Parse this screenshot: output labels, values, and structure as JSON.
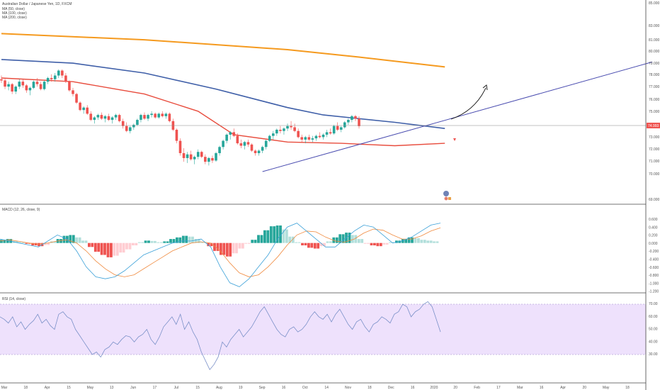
{
  "symbol_line": "Australian Dollar / Japanese Yen, 1D, FXCM",
  "ma_labels": [
    "MA (50, close)",
    "MA (100, close)",
    "MA (200, close)"
  ],
  "macd_label": "MACD (12, 26, close, 9)",
  "rsi_label": "RSI (14, close)",
  "colors": {
    "up": "#26a69a",
    "down": "#ef5350",
    "ma50": "#e84c3d",
    "ma100": "#3f5fa8",
    "ma200": "#f59a1f",
    "trend": "#4a4db0",
    "rsi_band": "#ead9fb",
    "rsi": "#7a90c8"
  },
  "price_axis": [
    "85.000",
    "83.000",
    "81.000",
    "80.000",
    "79.000",
    "78.000",
    "77.000",
    "76.000",
    "75.000",
    "74.000",
    "73.000",
    "72.000",
    "71.000",
    "70.000",
    "69.000"
  ],
  "current_price": "74.993",
  "macd_axis": [
    "0.600",
    "0.400",
    "0.200",
    "0.000",
    "-0.200",
    "-0.400",
    "-0.600",
    "-0.800",
    "-1.000",
    "-1.200"
  ],
  "rsi_axis": [
    "70.00",
    "60.00",
    "50.00",
    "40.00",
    "30.00"
  ],
  "time_axis": [
    "Mar",
    "18",
    "Apr",
    "15",
    "May",
    "13",
    "Jun",
    "17",
    "Jul",
    "15",
    "Aug",
    "19",
    "Sep",
    "16",
    "Oct",
    "14",
    "Nov",
    "18",
    "Dec",
    "16",
    "2020",
    "20",
    "Feb",
    "17",
    "Mar",
    "16",
    "Apr",
    "20",
    "May",
    "18"
  ],
  "chart_data": {
    "type": "candlestick",
    "price_range": [
      69,
      85
    ],
    "macd_range": [
      -1.2,
      0.7
    ],
    "rsi_range": [
      20,
      80
    ],
    "rsi_levels": [
      70,
      30
    ],
    "grid": false,
    "candles": [
      [
        78.8,
        79.1,
        78.5,
        78.7
      ],
      [
        78.7,
        78.9,
        78.0,
        78.2
      ],
      [
        78.2,
        78.6,
        77.9,
        78.4
      ],
      [
        78.4,
        78.5,
        77.6,
        77.8
      ],
      [
        77.8,
        78.3,
        77.6,
        78.2
      ],
      [
        78.2,
        78.8,
        78.0,
        78.6
      ],
      [
        78.6,
        78.8,
        78.1,
        78.3
      ],
      [
        78.3,
        78.4,
        77.7,
        77.9
      ],
      [
        77.9,
        78.2,
        77.5,
        78.1
      ],
      [
        78.1,
        78.7,
        78.0,
        78.6
      ],
      [
        78.6,
        78.9,
        78.2,
        78.4
      ],
      [
        78.4,
        78.6,
        77.9,
        78.0
      ],
      [
        78.0,
        78.7,
        77.9,
        78.6
      ],
      [
        78.6,
        79.0,
        78.4,
        78.9
      ],
      [
        78.9,
        79.2,
        78.6,
        78.8
      ],
      [
        78.8,
        79.3,
        78.6,
        79.1
      ],
      [
        79.1,
        79.6,
        78.9,
        79.5
      ],
      [
        79.5,
        79.6,
        78.9,
        79.1
      ],
      [
        79.1,
        79.3,
        78.5,
        78.6
      ],
      [
        78.6,
        78.7,
        77.8,
        77.9
      ],
      [
        77.9,
        78.1,
        77.4,
        77.6
      ],
      [
        77.6,
        77.7,
        76.8,
        76.9
      ],
      [
        76.9,
        77.0,
        76.2,
        76.3
      ],
      [
        76.3,
        76.6,
        76.0,
        76.5
      ],
      [
        76.5,
        76.7,
        75.9,
        76.0
      ],
      [
        76.0,
        76.2,
        75.4,
        75.5
      ],
      [
        75.5,
        75.8,
        75.2,
        75.7
      ],
      [
        75.7,
        76.0,
        75.5,
        75.9
      ],
      [
        75.9,
        76.1,
        75.5,
        75.6
      ],
      [
        75.6,
        75.9,
        75.3,
        75.8
      ],
      [
        75.8,
        76.0,
        75.4,
        75.5
      ],
      [
        75.5,
        75.8,
        75.2,
        75.7
      ],
      [
        75.7,
        76.0,
        75.5,
        75.9
      ],
      [
        75.9,
        76.0,
        75.3,
        75.4
      ],
      [
        75.4,
        75.6,
        74.8,
        75.0
      ],
      [
        75.0,
        75.3,
        74.5,
        74.6
      ],
      [
        74.6,
        75.0,
        74.4,
        74.9
      ],
      [
        74.9,
        75.2,
        74.7,
        75.1
      ],
      [
        75.1,
        75.6,
        75.0,
        75.5
      ],
      [
        75.5,
        76.0,
        75.3,
        75.9
      ],
      [
        75.9,
        76.1,
        75.5,
        75.6
      ],
      [
        75.6,
        76.0,
        75.4,
        75.9
      ],
      [
        75.9,
        76.2,
        75.7,
        76.0
      ],
      [
        76.0,
        76.1,
        75.6,
        75.7
      ],
      [
        75.7,
        76.1,
        75.6,
        76.0
      ],
      [
        76.0,
        76.2,
        75.7,
        75.8
      ],
      [
        75.8,
        76.1,
        75.6,
        76.0
      ],
      [
        76.0,
        76.1,
        75.3,
        75.4
      ],
      [
        75.4,
        75.6,
        74.6,
        74.7
      ],
      [
        74.7,
        74.8,
        73.6,
        73.8
      ],
      [
        73.8,
        74.0,
        72.6,
        72.8
      ],
      [
        72.8,
        73.2,
        72.1,
        72.4
      ],
      [
        72.4,
        72.9,
        72.0,
        72.7
      ],
      [
        72.7,
        73.0,
        72.2,
        72.3
      ],
      [
        72.3,
        72.6,
        71.9,
        72.5
      ],
      [
        72.5,
        73.1,
        72.3,
        72.9
      ],
      [
        72.9,
        73.0,
        72.4,
        72.5
      ],
      [
        72.5,
        72.7,
        71.9,
        72.1
      ],
      [
        72.1,
        72.5,
        71.8,
        72.4
      ],
      [
        72.4,
        72.6,
        72.0,
        72.2
      ],
      [
        72.2,
        72.9,
        72.1,
        72.8
      ],
      [
        72.8,
        73.4,
        72.6,
        73.3
      ],
      [
        73.3,
        73.9,
        73.1,
        73.8
      ],
      [
        73.8,
        74.4,
        73.6,
        74.3
      ],
      [
        74.3,
        74.6,
        73.9,
        74.5
      ],
      [
        74.5,
        74.8,
        74.1,
        74.2
      ],
      [
        74.2,
        74.4,
        73.5,
        73.6
      ],
      [
        73.6,
        73.9,
        73.2,
        73.4
      ],
      [
        73.4,
        73.8,
        73.1,
        73.7
      ],
      [
        73.7,
        73.9,
        73.3,
        73.5
      ],
      [
        73.5,
        73.6,
        72.9,
        73.0
      ],
      [
        73.0,
        73.1,
        72.6,
        72.8
      ],
      [
        72.8,
        73.1,
        72.6,
        73.0
      ],
      [
        73.0,
        73.4,
        72.8,
        73.3
      ],
      [
        73.3,
        73.9,
        73.1,
        73.8
      ],
      [
        73.8,
        74.3,
        73.7,
        74.2
      ],
      [
        74.2,
        74.6,
        73.9,
        74.4
      ],
      [
        74.4,
        74.8,
        74.2,
        74.7
      ],
      [
        74.7,
        75.0,
        74.4,
        74.6
      ],
      [
        74.6,
        74.9,
        74.3,
        74.8
      ],
      [
        74.8,
        75.2,
        74.6,
        75.0
      ],
      [
        75.0,
        75.4,
        74.7,
        74.9
      ],
      [
        74.9,
        75.2,
        74.5,
        74.6
      ],
      [
        74.6,
        74.8,
        74.0,
        74.1
      ],
      [
        74.1,
        74.3,
        73.7,
        73.9
      ],
      [
        73.9,
        74.2,
        73.6,
        74.1
      ],
      [
        74.1,
        74.3,
        73.8,
        73.9
      ],
      [
        73.9,
        74.2,
        73.7,
        74.0
      ],
      [
        74.0,
        74.3,
        73.8,
        74.2
      ],
      [
        74.2,
        74.5,
        74.0,
        74.1
      ],
      [
        74.1,
        74.4,
        73.9,
        74.3
      ],
      [
        74.3,
        74.7,
        74.1,
        74.5
      ],
      [
        74.5,
        74.8,
        74.3,
        74.4
      ],
      [
        74.4,
        75.1,
        74.3,
        75.0
      ],
      [
        75.0,
        75.3,
        74.6,
        74.7
      ],
      [
        74.7,
        75.0,
        74.5,
        74.9
      ],
      [
        74.9,
        75.4,
        74.8,
        75.3
      ],
      [
        75.3,
        75.6,
        75.1,
        75.5
      ],
      [
        75.5,
        75.9,
        75.3,
        75.8
      ],
      [
        75.8,
        75.9,
        75.4,
        75.6
      ],
      [
        75.6,
        75.8,
        74.8,
        74.99
      ]
    ],
    "ma200": [
      [
        0,
        82.5
      ],
      [
        40,
        82.0
      ],
      [
        80,
        81.2
      ],
      [
        100,
        80.6
      ],
      [
        124,
        79.8
      ]
    ],
    "ma100": [
      [
        0,
        80.4
      ],
      [
        20,
        80.1
      ],
      [
        40,
        79.3
      ],
      [
        60,
        78.0
      ],
      [
        80,
        76.5
      ],
      [
        90,
        75.9
      ],
      [
        110,
        75.3
      ],
      [
        124,
        74.8
      ]
    ],
    "ma50": [
      [
        0,
        78.9
      ],
      [
        20,
        78.6
      ],
      [
        40,
        77.6
      ],
      [
        55,
        76.2
      ],
      [
        65,
        74.3
      ],
      [
        80,
        73.7
      ],
      [
        95,
        73.6
      ],
      [
        110,
        73.4
      ],
      [
        124,
        73.6
      ]
    ],
    "trendline": [
      [
        73,
        71.3
      ],
      [
        182,
        80.2
      ]
    ],
    "macd_hist": [
      0.08,
      0.1,
      0.05,
      0.02,
      -0.02,
      -0.06,
      -0.08,
      -0.05,
      0.04,
      0.1,
      0.18,
      0.2,
      0.14,
      0.06,
      -0.1,
      -0.22,
      -0.3,
      -0.36,
      -0.32,
      -0.24,
      -0.16,
      -0.06,
      0.02,
      0.06,
      0.05,
      0.02,
      0.04,
      0.1,
      0.14,
      0.18,
      0.16,
      0.1,
      0.02,
      -0.08,
      -0.2,
      -0.3,
      -0.34,
      -0.26,
      -0.14,
      -0.02,
      0.08,
      0.2,
      0.32,
      0.42,
      0.44,
      0.34,
      0.16,
      0.02,
      -0.06,
      -0.12,
      -0.14,
      -0.08,
      0.04,
      0.14,
      0.22,
      0.26,
      0.2,
      0.1,
      -0.02,
      -0.06,
      -0.08,
      -0.04,
      0.02,
      0.06,
      0.1,
      0.14,
      0.12,
      0.08,
      0.06,
      0.04
    ],
    "macd_line": [
      0.1,
      0.05,
      0.0,
      -0.05,
      -0.1,
      0.05,
      0.2,
      0.1,
      -0.2,
      -0.6,
      -0.85,
      -0.9,
      -0.85,
      -0.7,
      -0.5,
      -0.3,
      -0.2,
      -0.1,
      0.0,
      0.05,
      0.05,
      0.1,
      -0.1,
      -0.6,
      -1.0,
      -1.1,
      -0.9,
      -0.6,
      -0.3,
      0.1,
      0.4,
      0.5,
      0.3,
      0.1,
      -0.1,
      -0.1,
      0.1,
      0.3,
      0.45,
      0.4,
      0.2,
      0.0,
      0.05,
      0.15,
      0.3,
      0.45,
      0.5
    ],
    "macd_signal": [
      0.05,
      0.08,
      0.04,
      0.0,
      -0.03,
      0.0,
      0.05,
      0.08,
      0.0,
      -0.2,
      -0.45,
      -0.65,
      -0.8,
      -0.85,
      -0.8,
      -0.65,
      -0.5,
      -0.35,
      -0.2,
      -0.1,
      0.0,
      0.03,
      0.0,
      -0.2,
      -0.5,
      -0.75,
      -0.85,
      -0.8,
      -0.6,
      -0.35,
      -0.05,
      0.2,
      0.3,
      0.28,
      0.15,
      0.05,
      0.02,
      0.1,
      0.25,
      0.35,
      0.32,
      0.2,
      0.1,
      0.1,
      0.18,
      0.3,
      0.38
    ],
    "rsi": [
      60,
      58,
      55,
      60,
      52,
      56,
      50,
      54,
      57,
      62,
      55,
      58,
      53,
      50,
      62,
      64,
      60,
      58,
      50,
      45,
      40,
      35,
      30,
      32,
      28,
      34,
      36,
      40,
      38,
      42,
      45,
      44,
      40,
      44,
      46,
      50,
      42,
      38,
      44,
      52,
      56,
      60,
      54,
      62,
      50,
      56,
      48,
      42,
      32,
      25,
      18,
      22,
      28,
      40,
      36,
      42,
      46,
      50,
      44,
      48,
      52,
      58,
      64,
      68,
      62,
      56,
      50,
      46,
      44,
      50,
      52,
      48,
      50,
      54,
      60,
      64,
      60,
      58,
      62,
      56,
      62,
      66,
      60,
      54,
      50,
      56,
      58,
      52,
      48,
      54,
      56,
      60,
      58,
      55,
      62,
      64,
      70,
      68,
      60,
      64,
      66,
      70,
      72,
      68,
      58,
      48
    ]
  }
}
